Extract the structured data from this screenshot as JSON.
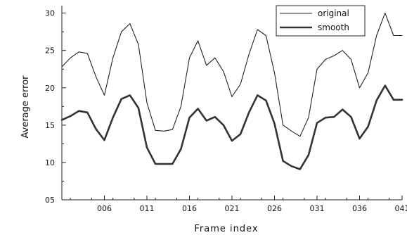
{
  "chart_data": {
    "type": "line",
    "xlabel": "Frame index",
    "ylabel": "Average error",
    "xlim": [
      1,
      41
    ],
    "ylim": [
      5,
      31
    ],
    "y_ticks": [
      5,
      10,
      15,
      20,
      25,
      30
    ],
    "y_tick_labels": [
      "05",
      "10",
      "15",
      "20",
      "25",
      "30"
    ],
    "x_ticks": [
      6,
      11,
      16,
      21,
      26,
      31,
      36,
      41
    ],
    "x_tick_labels": [
      "006",
      "011",
      "016",
      "021",
      "026",
      "031",
      "036",
      "041"
    ],
    "legend_position": "top-right",
    "grid": false,
    "x": [
      1,
      2,
      3,
      4,
      5,
      6,
      7,
      8,
      9,
      10,
      11,
      12,
      13,
      14,
      15,
      16,
      17,
      18,
      19,
      20,
      21,
      22,
      23,
      24,
      25,
      26,
      27,
      28,
      29,
      30,
      31,
      32,
      33,
      34,
      35,
      36,
      37,
      38,
      39,
      40,
      41
    ],
    "series": [
      {
        "name": "original",
        "color": "#222222",
        "line_width": 1.1,
        "values": [
          22.8,
          24.0,
          24.8,
          24.6,
          21.5,
          19.0,
          24.0,
          27.5,
          28.6,
          25.8,
          18.0,
          14.3,
          14.2,
          14.4,
          17.5,
          24.0,
          26.3,
          23.0,
          24.0,
          22.2,
          18.8,
          20.5,
          24.5,
          27.8,
          27.0,
          22.0,
          15.0,
          14.2,
          13.5,
          16.0,
          22.5,
          23.8,
          24.3,
          25.0,
          23.8,
          20.0,
          22.0,
          27.0,
          30.0,
          27.0,
          27.0
        ]
      },
      {
        "name": "smooth",
        "color": "#333333",
        "line_width": 2.6,
        "values": [
          15.7,
          16.2,
          16.9,
          16.7,
          14.5,
          13.0,
          16.0,
          18.5,
          19.0,
          17.3,
          12.0,
          9.8,
          9.8,
          9.8,
          11.8,
          16.0,
          17.2,
          15.6,
          16.1,
          15.0,
          12.9,
          13.8,
          16.7,
          19.0,
          18.3,
          15.2,
          10.2,
          9.5,
          9.1,
          11.0,
          15.3,
          16.0,
          16.1,
          17.1,
          16.1,
          13.2,
          14.8,
          18.3,
          20.3,
          18.4,
          18.4
        ]
      }
    ]
  }
}
